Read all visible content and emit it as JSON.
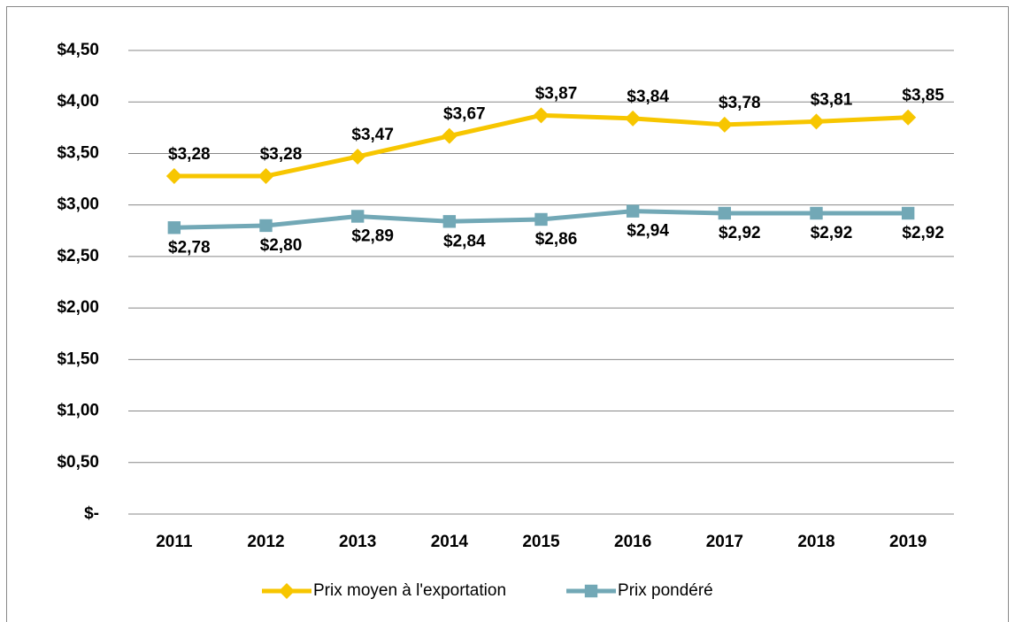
{
  "chart_data": {
    "type": "line",
    "categories": [
      "2011",
      "2012",
      "2013",
      "2014",
      "2015",
      "2016",
      "2017",
      "2018",
      "2019"
    ],
    "series": [
      {
        "name": "Prix moyen à l'exportation",
        "color": "#f7c600",
        "marker": "diamond",
        "values": [
          3.28,
          3.28,
          3.47,
          3.67,
          3.87,
          3.84,
          3.78,
          3.81,
          3.85
        ],
        "value_labels": [
          "$3,28",
          "$3,28",
          "$3,47",
          "$3,67",
          "$3,87",
          "$3,84",
          "$3,78",
          "$3,81",
          "$3,85"
        ]
      },
      {
        "name": "Prix pondéré",
        "color": "#72a8b6",
        "marker": "square",
        "values": [
          2.78,
          2.8,
          2.89,
          2.84,
          2.86,
          2.94,
          2.92,
          2.92,
          2.92
        ],
        "value_labels": [
          "$2,78",
          "$2,80",
          "$2,89",
          "$2,84",
          "$2,86",
          "$2,94",
          "$2,92",
          "$2,92",
          "$2,92"
        ]
      }
    ],
    "ylim": [
      0,
      4.5
    ],
    "yticks": [
      {
        "value": 0,
        "label": "$-"
      },
      {
        "value": 0.5,
        "label": "$0,50"
      },
      {
        "value": 1,
        "label": "$1,00"
      },
      {
        "value": 1.5,
        "label": "$1,50"
      },
      {
        "value": 2,
        "label": "$2,00"
      },
      {
        "value": 2.5,
        "label": "$2,50"
      },
      {
        "value": 3,
        "label": "$3,00"
      },
      {
        "value": 3.5,
        "label": "$3,50"
      },
      {
        "value": 4,
        "label": "$4,00"
      },
      {
        "value": 4.5,
        "label": "$4,50"
      }
    ],
    "grid": true,
    "legend": "bottom"
  }
}
